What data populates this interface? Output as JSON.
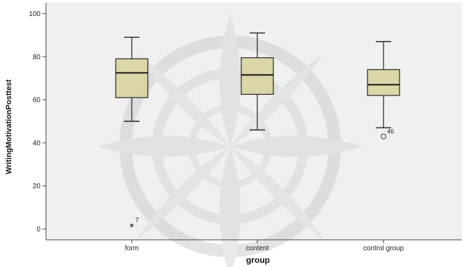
{
  "chart_data": {
    "type": "box",
    "xlabel": "group",
    "ylabel": "WritingMotivationPosttest",
    "ylim": [
      -5,
      105
    ],
    "yticks": [
      0,
      20,
      40,
      60,
      80,
      100
    ],
    "grid": false,
    "categories": [
      "form",
      "content",
      "control group"
    ],
    "boxes": [
      {
        "category": "form",
        "whisker_low": 50,
        "q1": 61,
        "median": 72.5,
        "q3": 79,
        "whisker_high": 89
      },
      {
        "category": "content",
        "whisker_low": 46,
        "q1": 62.5,
        "median": 71.5,
        "q3": 79.5,
        "whisker_high": 91
      },
      {
        "category": "control group",
        "whisker_low": 47,
        "q1": 62,
        "median": 67,
        "q3": 74,
        "whisker_high": 87
      }
    ],
    "outliers": [
      {
        "category": "form",
        "value": 2,
        "marker": "star",
        "label": "7"
      },
      {
        "category": "control group",
        "value": 43,
        "marker": "circle",
        "label": "46"
      }
    ],
    "colors": {
      "box_fill": "#d9d4a0",
      "plot_background": "#f0f0f0",
      "line": "#222222"
    }
  }
}
